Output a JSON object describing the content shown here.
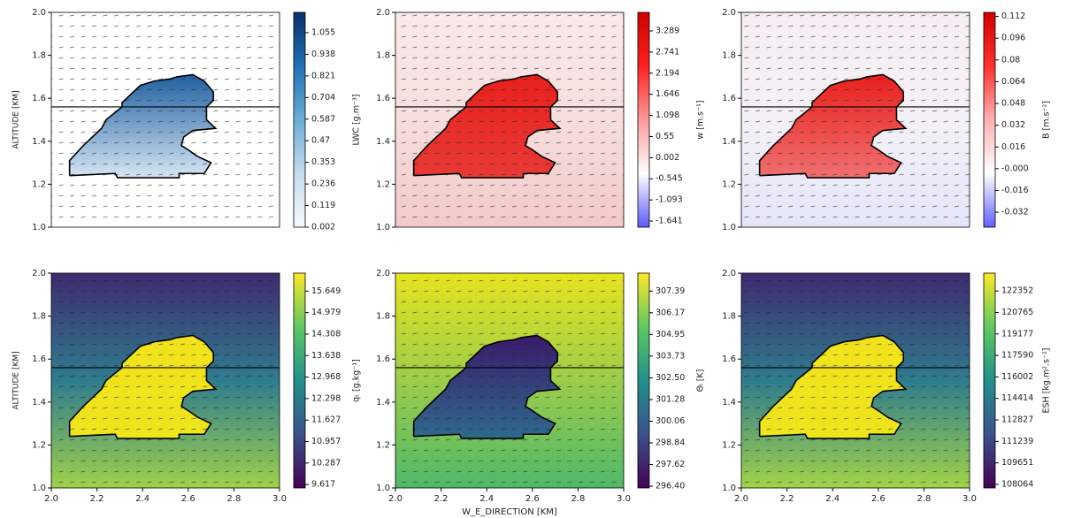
{
  "chart_data": [
    {
      "type": "heatmap",
      "cbar_label": "LWC [g.m⁻³]",
      "xlim": [
        2.0,
        3.0
      ],
      "ylim": [
        1.0,
        2.0
      ],
      "yticks": [
        {
          "value": 1,
          "label": "1.0"
        },
        1.2,
        1.4,
        1.6,
        1.8,
        {
          "value": 2,
          "label": "2.0"
        }
      ],
      "ylabel": "ALTITUDE [KM]",
      "hline": 1.56,
      "clim": [
        0.002,
        1.165
      ],
      "cticks": [
        0.002,
        0.119,
        0.236,
        0.353,
        0.47,
        0.587,
        0.704,
        0.821,
        0.938,
        1.055
      ],
      "colormap": [
        "#f7fbff",
        "#c6dbef",
        "#6baed6",
        "#2171b5",
        "#08306b"
      ],
      "field_colors": [
        "#ffffff",
        "#ffffff",
        "#ffffff"
      ],
      "cloud_colors": [
        "#1f5fa0",
        "#d6e6f4"
      ],
      "contour": {
        "x": [
          2.08,
          2.08,
          2.14,
          2.22,
          2.24,
          2.31,
          2.31,
          2.35,
          2.39,
          2.45,
          2.52,
          2.55,
          2.62,
          2.67,
          2.71,
          2.71,
          2.68,
          2.68,
          2.72,
          2.62,
          2.58,
          2.57,
          2.6,
          2.64,
          2.7,
          2.67,
          2.56,
          2.56,
          2.29,
          2.28,
          2.08
        ],
        "y": [
          1.24,
          1.31,
          1.38,
          1.46,
          1.5,
          1.56,
          1.58,
          1.62,
          1.66,
          1.68,
          1.69,
          1.7,
          1.71,
          1.68,
          1.63,
          1.59,
          1.56,
          1.5,
          1.46,
          1.45,
          1.42,
          1.38,
          1.36,
          1.33,
          1.3,
          1.25,
          1.25,
          1.23,
          1.23,
          1.25,
          1.24
        ]
      }
    },
    {
      "type": "heatmap",
      "cbar_label": "w [m.s⁻¹]",
      "xlim": [
        2.0,
        3.0
      ],
      "ylim": [
        1.0,
        2.0
      ],
      "yticks": [
        {
          "value": 1,
          "label": "1.0"
        },
        1.2,
        1.4,
        1.6,
        1.8,
        {
          "value": 2,
          "label": "2.0"
        }
      ],
      "hline": 1.56,
      "clim": [
        -1.8,
        3.77
      ],
      "cticks": [
        -1.641,
        -1.093,
        -0.545,
        0.002,
        0.55,
        1.098,
        1.646,
        2.194,
        2.741,
        3.289
      ],
      "colormap": [
        "#5a5aff",
        "#ffffff",
        "#ff9a9a",
        "#ff2020",
        "#d00000"
      ],
      "field_colors": [
        "#fbeaea",
        "#f6dede",
        "#f3c9c9"
      ],
      "cloud_colors": [
        "#e8201c",
        "#e83a36"
      ],
      "contour": {
        "x": [
          2.08,
          2.08,
          2.14,
          2.22,
          2.24,
          2.31,
          2.31,
          2.35,
          2.39,
          2.45,
          2.52,
          2.55,
          2.62,
          2.67,
          2.71,
          2.71,
          2.68,
          2.68,
          2.72,
          2.62,
          2.58,
          2.57,
          2.6,
          2.64,
          2.7,
          2.67,
          2.56,
          2.56,
          2.29,
          2.28,
          2.08
        ],
        "y": [
          1.24,
          1.31,
          1.38,
          1.46,
          1.5,
          1.56,
          1.58,
          1.62,
          1.66,
          1.68,
          1.69,
          1.7,
          1.71,
          1.68,
          1.63,
          1.59,
          1.56,
          1.5,
          1.46,
          1.45,
          1.42,
          1.38,
          1.36,
          1.33,
          1.3,
          1.25,
          1.25,
          1.23,
          1.23,
          1.25,
          1.24
        ]
      }
    },
    {
      "type": "heatmap",
      "cbar_label": "B [m.s⁻²]",
      "xlim": [
        2.0,
        3.0
      ],
      "ylim": [
        1.0,
        2.0
      ],
      "yticks": [
        {
          "value": 1,
          "label": "1.0"
        },
        1.2,
        1.4,
        1.6,
        1.8,
        {
          "value": 2,
          "label": "2.0"
        }
      ],
      "hline": 1.56,
      "clim": [
        -0.043,
        0.115
      ],
      "cticks": [
        -0.032,
        -0.016,
        {
          "value": 0,
          "label": "-0.000"
        },
        0.016,
        0.032,
        0.048,
        0.064,
        0.08,
        0.096,
        0.112
      ],
      "colormap": [
        "#6060ff",
        "#ffffff",
        "#ffb0b0",
        "#ff3030",
        "#d40000"
      ],
      "field_colors": [
        "#f6eef2",
        "#f4f1f6",
        "#e4e6fa"
      ],
      "cloud_colors": [
        "#e8201c",
        "#f07070"
      ],
      "contour": {
        "x": [
          2.08,
          2.08,
          2.14,
          2.22,
          2.24,
          2.31,
          2.31,
          2.35,
          2.39,
          2.45,
          2.52,
          2.55,
          2.62,
          2.67,
          2.71,
          2.71,
          2.68,
          2.68,
          2.72,
          2.62,
          2.58,
          2.57,
          2.6,
          2.64,
          2.7,
          2.67,
          2.56,
          2.56,
          2.29,
          2.28,
          2.08
        ],
        "y": [
          1.24,
          1.31,
          1.38,
          1.46,
          1.5,
          1.56,
          1.58,
          1.62,
          1.66,
          1.68,
          1.69,
          1.7,
          1.71,
          1.68,
          1.63,
          1.59,
          1.56,
          1.5,
          1.46,
          1.45,
          1.42,
          1.38,
          1.36,
          1.33,
          1.3,
          1.25,
          1.25,
          1.23,
          1.23,
          1.25,
          1.24
        ]
      }
    },
    {
      "type": "heatmap",
      "cbar_label": "qₜ [g.kg⁻¹]",
      "xlim": [
        2.0,
        3.0
      ],
      "ylim": [
        1.0,
        2.0
      ],
      "xticks": [
        {
          "value": 2,
          "label": "2.0"
        },
        2.2,
        2.4,
        2.6,
        2.8,
        {
          "value": 3,
          "label": "3.0"
        }
      ],
      "yticks": [
        {
          "value": 1,
          "label": "1.0"
        },
        1.2,
        1.4,
        1.6,
        1.8,
        {
          "value": 2,
          "label": "2.0"
        }
      ],
      "ylabel": "ALTITUDE [KM]",
      "hline": 1.56,
      "clim": [
        9.51,
        16.21
      ],
      "cticks": [
        9.617,
        10.287,
        10.957,
        11.627,
        12.298,
        12.968,
        13.638,
        14.308,
        14.979,
        15.649
      ],
      "colormap": [
        "#440154",
        "#3b528b",
        "#21918c",
        "#5ec962",
        "#fde725"
      ],
      "field_colors": [
        "#3e2a6e",
        "#2f7c8e",
        "#9fd24a"
      ],
      "cloud_colors": [
        "#f2e21c",
        "#eee51c"
      ],
      "contour": {
        "x": [
          2.08,
          2.08,
          2.14,
          2.22,
          2.24,
          2.31,
          2.31,
          2.35,
          2.39,
          2.45,
          2.52,
          2.55,
          2.62,
          2.67,
          2.71,
          2.71,
          2.68,
          2.68,
          2.72,
          2.62,
          2.58,
          2.57,
          2.6,
          2.64,
          2.7,
          2.67,
          2.56,
          2.56,
          2.29,
          2.28,
          2.08
        ],
        "y": [
          1.24,
          1.31,
          1.38,
          1.46,
          1.5,
          1.56,
          1.58,
          1.62,
          1.66,
          1.68,
          1.69,
          1.7,
          1.71,
          1.68,
          1.63,
          1.59,
          1.56,
          1.5,
          1.46,
          1.45,
          1.42,
          1.38,
          1.36,
          1.33,
          1.3,
          1.25,
          1.25,
          1.23,
          1.23,
          1.25,
          1.24
        ]
      }
    },
    {
      "type": "heatmap",
      "cbar_label": "Θₗ [K]",
      "xlim": [
        2.0,
        3.0
      ],
      "ylim": [
        1.0,
        2.0
      ],
      "xticks": [
        {
          "value": 2,
          "label": "2.0"
        },
        2.2,
        2.4,
        2.6,
        2.8,
        {
          "value": 3,
          "label": "3.0"
        }
      ],
      "yticks": [
        {
          "value": 1,
          "label": "1.0"
        },
        1.2,
        1.4,
        1.6,
        1.8,
        {
          "value": 2,
          "label": "2.0"
        }
      ],
      "xlabel": "W_E_DIRECTION [KM]",
      "hline": 1.56,
      "clim": [
        296.3,
        308.4
      ],
      "cticks": [
        {
          "value": 296.4,
          "label": "296.40"
        },
        297.62,
        298.84,
        300.06,
        301.28,
        {
          "value": 302.5,
          "label": "302.50"
        },
        303.73,
        304.95,
        306.17,
        307.39
      ],
      "colormap": [
        "#440154",
        "#3b528b",
        "#21918c",
        "#5ec962",
        "#fde725"
      ],
      "field_colors": [
        "#e6e41e",
        "#9ccd4a",
        "#4fb86a"
      ],
      "cloud_colors": [
        "#3a1a6a",
        "#2e6a8c"
      ],
      "contour": {
        "x": [
          2.08,
          2.08,
          2.14,
          2.22,
          2.24,
          2.31,
          2.31,
          2.35,
          2.39,
          2.45,
          2.52,
          2.55,
          2.62,
          2.67,
          2.71,
          2.71,
          2.68,
          2.68,
          2.72,
          2.62,
          2.58,
          2.57,
          2.6,
          2.64,
          2.7,
          2.67,
          2.56,
          2.56,
          2.29,
          2.28,
          2.08
        ],
        "y": [
          1.24,
          1.31,
          1.38,
          1.46,
          1.5,
          1.56,
          1.58,
          1.62,
          1.66,
          1.68,
          1.69,
          1.7,
          1.71,
          1.68,
          1.63,
          1.59,
          1.56,
          1.5,
          1.46,
          1.45,
          1.42,
          1.38,
          1.36,
          1.33,
          1.3,
          1.25,
          1.25,
          1.23,
          1.23,
          1.25,
          1.24
        ]
      }
    },
    {
      "type": "heatmap",
      "cbar_label": "ESH [kg.m².s⁻²]",
      "xlim": [
        2.0,
        3.0
      ],
      "ylim": [
        1.0,
        2.0
      ],
      "xticks": [
        {
          "value": 2,
          "label": "2.0"
        },
        2.2,
        2.4,
        2.6,
        2.8,
        {
          "value": 3,
          "label": "3.0"
        }
      ],
      "yticks": [
        {
          "value": 1,
          "label": "1.0"
        },
        1.2,
        1.4,
        1.6,
        1.8,
        {
          "value": 2,
          "label": "2.0"
        }
      ],
      "hline": 1.56,
      "clim": [
        107800,
        123670
      ],
      "cticks": [
        108064,
        109651,
        111239,
        112827,
        114414,
        116002,
        117590,
        119177,
        120765,
        122352
      ],
      "colormap": [
        "#440154",
        "#3b528b",
        "#21918c",
        "#5ec962",
        "#fde725"
      ],
      "field_colors": [
        "#3e2a6e",
        "#2f7c8e",
        "#a2d448"
      ],
      "cloud_colors": [
        "#f2e21c",
        "#eee51c"
      ],
      "contour": {
        "x": [
          2.08,
          2.08,
          2.14,
          2.22,
          2.24,
          2.31,
          2.31,
          2.35,
          2.39,
          2.45,
          2.52,
          2.55,
          2.62,
          2.67,
          2.71,
          2.71,
          2.68,
          2.68,
          2.72,
          2.62,
          2.58,
          2.57,
          2.6,
          2.64,
          2.7,
          2.67,
          2.56,
          2.56,
          2.29,
          2.28,
          2.08
        ],
        "y": [
          1.24,
          1.31,
          1.38,
          1.46,
          1.5,
          1.56,
          1.58,
          1.62,
          1.66,
          1.68,
          1.69,
          1.7,
          1.71,
          1.68,
          1.63,
          1.59,
          1.56,
          1.5,
          1.46,
          1.45,
          1.42,
          1.38,
          1.36,
          1.33,
          1.3,
          1.25,
          1.25,
          1.23,
          1.23,
          1.25,
          1.24
        ]
      }
    }
  ]
}
